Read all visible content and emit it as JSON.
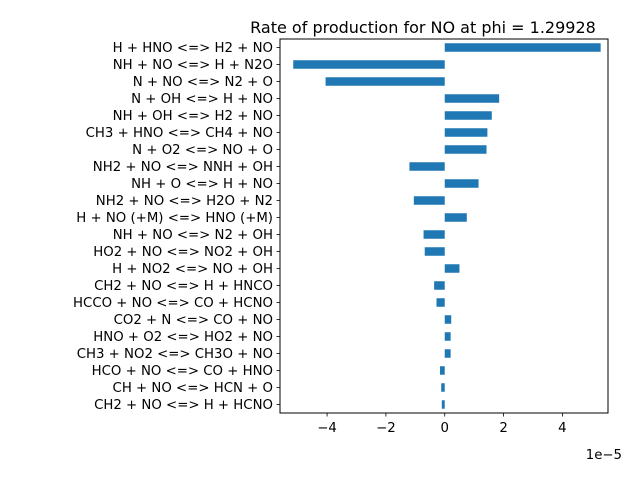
{
  "chart_data": {
    "type": "bar",
    "orientation": "horizontal",
    "title": "Rate of production for NO at phi = 1.29928",
    "xlabel": "",
    "ylabel": "",
    "x_offset_label": "1e−5",
    "x_scale": 1e-05,
    "xlim": [
      -5.6,
      5.55
    ],
    "xticks": [
      -4,
      -2,
      0,
      2,
      4
    ],
    "xtick_labels": [
      "−4",
      "−2",
      "0",
      "2",
      "4"
    ],
    "grid": false,
    "legend": "none",
    "bar_color": "#1f77b4",
    "categories": [
      "H + HNO <=> H2 + NO",
      "NH + NO <=> H + N2O",
      "N + NO <=> N2 + O",
      "N + OH <=> H + NO",
      "NH + OH <=> H2 + NO",
      "CH3 + HNO <=> CH4 + NO",
      "N + O2 <=> NO + O",
      "NH2 + NO <=> NNH + OH",
      "NH + O <=> H + NO",
      "NH2 + NO <=> H2O + N2",
      "H + NO (+M) <=> HNO (+M)",
      "NH + NO <=> N2 + OH",
      "HO2 + NO <=> NO2 + OH",
      "H + NO2 <=> NO + OH",
      "CH2 + NO <=> H + HNCO",
      "HCCO + NO <=> CO + HCNO",
      "CO2 + N <=> CO + NO",
      "HNO + O2 <=> HO2 + NO",
      "CH3 + NO2 <=> CH3O + NO",
      "HCO + NO <=> CO + HNO",
      "CH + NO <=> HCN + O",
      "CH2 + NO <=> H + HCNO"
    ],
    "values": [
      5.3,
      -5.15,
      -4.05,
      1.85,
      1.6,
      1.45,
      1.42,
      -1.2,
      1.15,
      -1.05,
      0.75,
      -0.72,
      -0.68,
      0.5,
      -0.36,
      -0.28,
      0.22,
      0.2,
      0.2,
      -0.16,
      -0.12,
      -0.1
    ]
  }
}
